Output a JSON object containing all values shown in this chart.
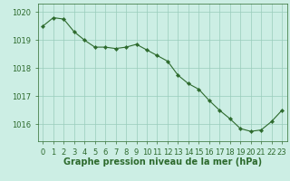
{
  "x": [
    0,
    1,
    2,
    3,
    4,
    5,
    6,
    7,
    8,
    9,
    10,
    11,
    12,
    13,
    14,
    15,
    16,
    17,
    18,
    19,
    20,
    21,
    22,
    23
  ],
  "y": [
    1019.5,
    1019.8,
    1019.75,
    1019.3,
    1019.0,
    1018.75,
    1018.75,
    1018.7,
    1018.75,
    1018.85,
    1018.65,
    1018.45,
    1018.25,
    1017.75,
    1017.45,
    1017.25,
    1016.85,
    1016.5,
    1016.2,
    1015.85,
    1015.75,
    1015.8,
    1016.1,
    1016.5
  ],
  "line_color": "#2d6a2d",
  "marker_color": "#2d6a2d",
  "bg_color": "#cceee4",
  "plot_bg_color": "#cceee4",
  "grid_color": "#99ccbb",
  "xlabel": "Graphe pression niveau de la mer (hPa)",
  "xlabel_color": "#2d6a2d",
  "tick_color": "#2d6a2d",
  "spine_color": "#2d6a2d",
  "ylim": [
    1015.4,
    1020.3
  ],
  "yticks": [
    1016,
    1017,
    1018,
    1019,
    1020
  ],
  "xlim": [
    -0.5,
    23.5
  ],
  "tick_fontsize": 6,
  "xlabel_fontsize": 7,
  "marker": "D",
  "markersize": 2.2,
  "linewidth": 0.8
}
